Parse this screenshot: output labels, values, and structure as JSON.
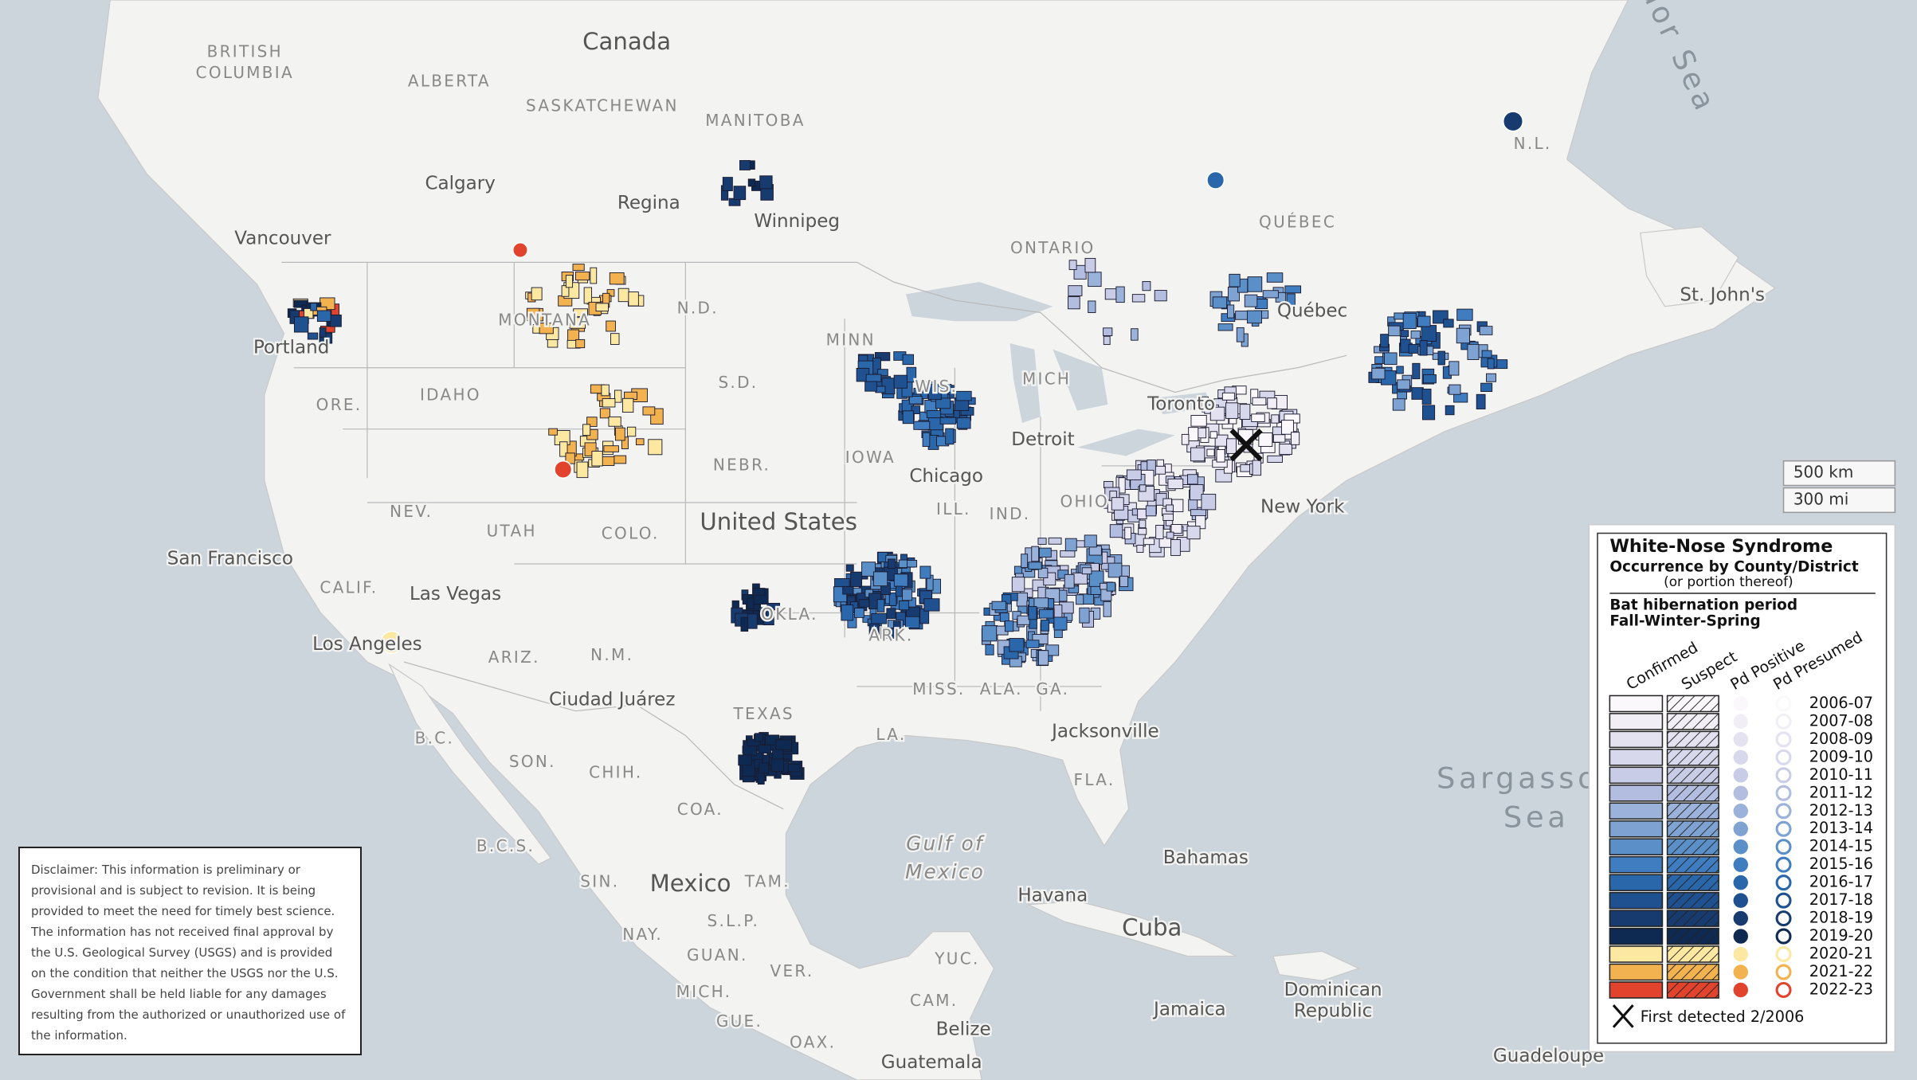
{
  "map": {
    "places": [
      "Canada",
      "BRITISH",
      "COLUMBIA",
      "ALBERTA",
      "SASKATCHEWAN",
      "MANITOBA",
      "Calgary",
      "Regina",
      "Winnipeg",
      "Vancouver",
      "ONTARIO",
      "QUÉBEC",
      "N.L.",
      "Québec",
      "St. John's",
      "MONTANA",
      "IDAHO",
      "ORE.",
      "Portland",
      "N.D.",
      "S.D.",
      "MINN",
      "WIS.",
      "MICH",
      "Toronto",
      "Detroit",
      "Chicago",
      "IOWA",
      "NEBR.",
      "NEV.",
      "UTAH",
      "COLO.",
      "United States",
      "ILL.",
      "IND.",
      "OHIO",
      "New York",
      "San Francisco",
      "CALIF.",
      "Las Vegas",
      "Los Angeles",
      "ARIZ.",
      "N.M.",
      "OKLA.",
      "ARK.",
      "Ciudad Juárez",
      "TEXAS",
      "MISS.",
      "ALA.",
      "GA.",
      "Jacksonville",
      "LA.",
      "FLA.",
      "SON.",
      "CHIH.",
      "COA.",
      "B.C.",
      "B.C.S.",
      "SIN.",
      "Mexico",
      "TAM.",
      "Gulf of",
      "Mexico",
      "Bahamas",
      "Havana",
      "Cuba",
      "NAY.",
      "S.L.P.",
      "GUAN.",
      "YUC.",
      "MICH.",
      "CAM.",
      "VER.",
      "Jamaica",
      "Dominican",
      "Republic",
      "Belize",
      "GUE.",
      "OAX.",
      "Guatemala",
      "Guadeloupe",
      "Sargasso",
      "Sea",
      "dor Sea"
    ]
  },
  "scale_bar": [
    "500 km",
    "300 mi"
  ],
  "legend": {
    "title": "White-Nose Syndrome",
    "subtitle": "Occurrence by County/District",
    "note": "(or portion thereof)",
    "period_title": "Bat hibernation period",
    "period_subtitle": "Fall-Winter-Spring",
    "columns": [
      "Confirmed",
      "Suspect",
      "Pd Positive",
      "Pd Presumed"
    ],
    "years": [
      {
        "label": "2006-07",
        "color": "#fbf8fb"
      },
      {
        "label": "2007-08",
        "color": "#f1eef6"
      },
      {
        "label": "2008-09",
        "color": "#e4e2f0"
      },
      {
        "label": "2009-10",
        "color": "#d8d8ec"
      },
      {
        "label": "2010-11",
        "color": "#c9cce6"
      },
      {
        "label": "2011-12",
        "color": "#b3bde0"
      },
      {
        "label": "2012-13",
        "color": "#9bb2da"
      },
      {
        "label": "2013-14",
        "color": "#7ea3d2"
      },
      {
        "label": "2014-15",
        "color": "#5a8fc7"
      },
      {
        "label": "2015-16",
        "color": "#3f7dc0"
      },
      {
        "label": "2016-17",
        "color": "#2a66aa"
      },
      {
        "label": "2017-18",
        "color": "#1f5090"
      },
      {
        "label": "2018-19",
        "color": "#173b6e"
      },
      {
        "label": "2019-20",
        "color": "#0f2a52"
      },
      {
        "label": "2020-21",
        "color": "#fde8a2"
      },
      {
        "label": "2021-22",
        "color": "#f2b24f"
      },
      {
        "label": "2022-23",
        "color": "#e2432c"
      }
    ],
    "first_detected": "First detected 2/2006"
  },
  "disclaimer": "Disclaimer: This information is preliminary or provisional and is subject to revision. It is being provided to meet the need for timely best science. The information has not received final approval by the U.S. Geological Survey (USGS) and is provided on the condition that neither the USGS nor the U.S. Government shall be held liable for any damages resulting from the authorized or unauthorized use of the information."
}
